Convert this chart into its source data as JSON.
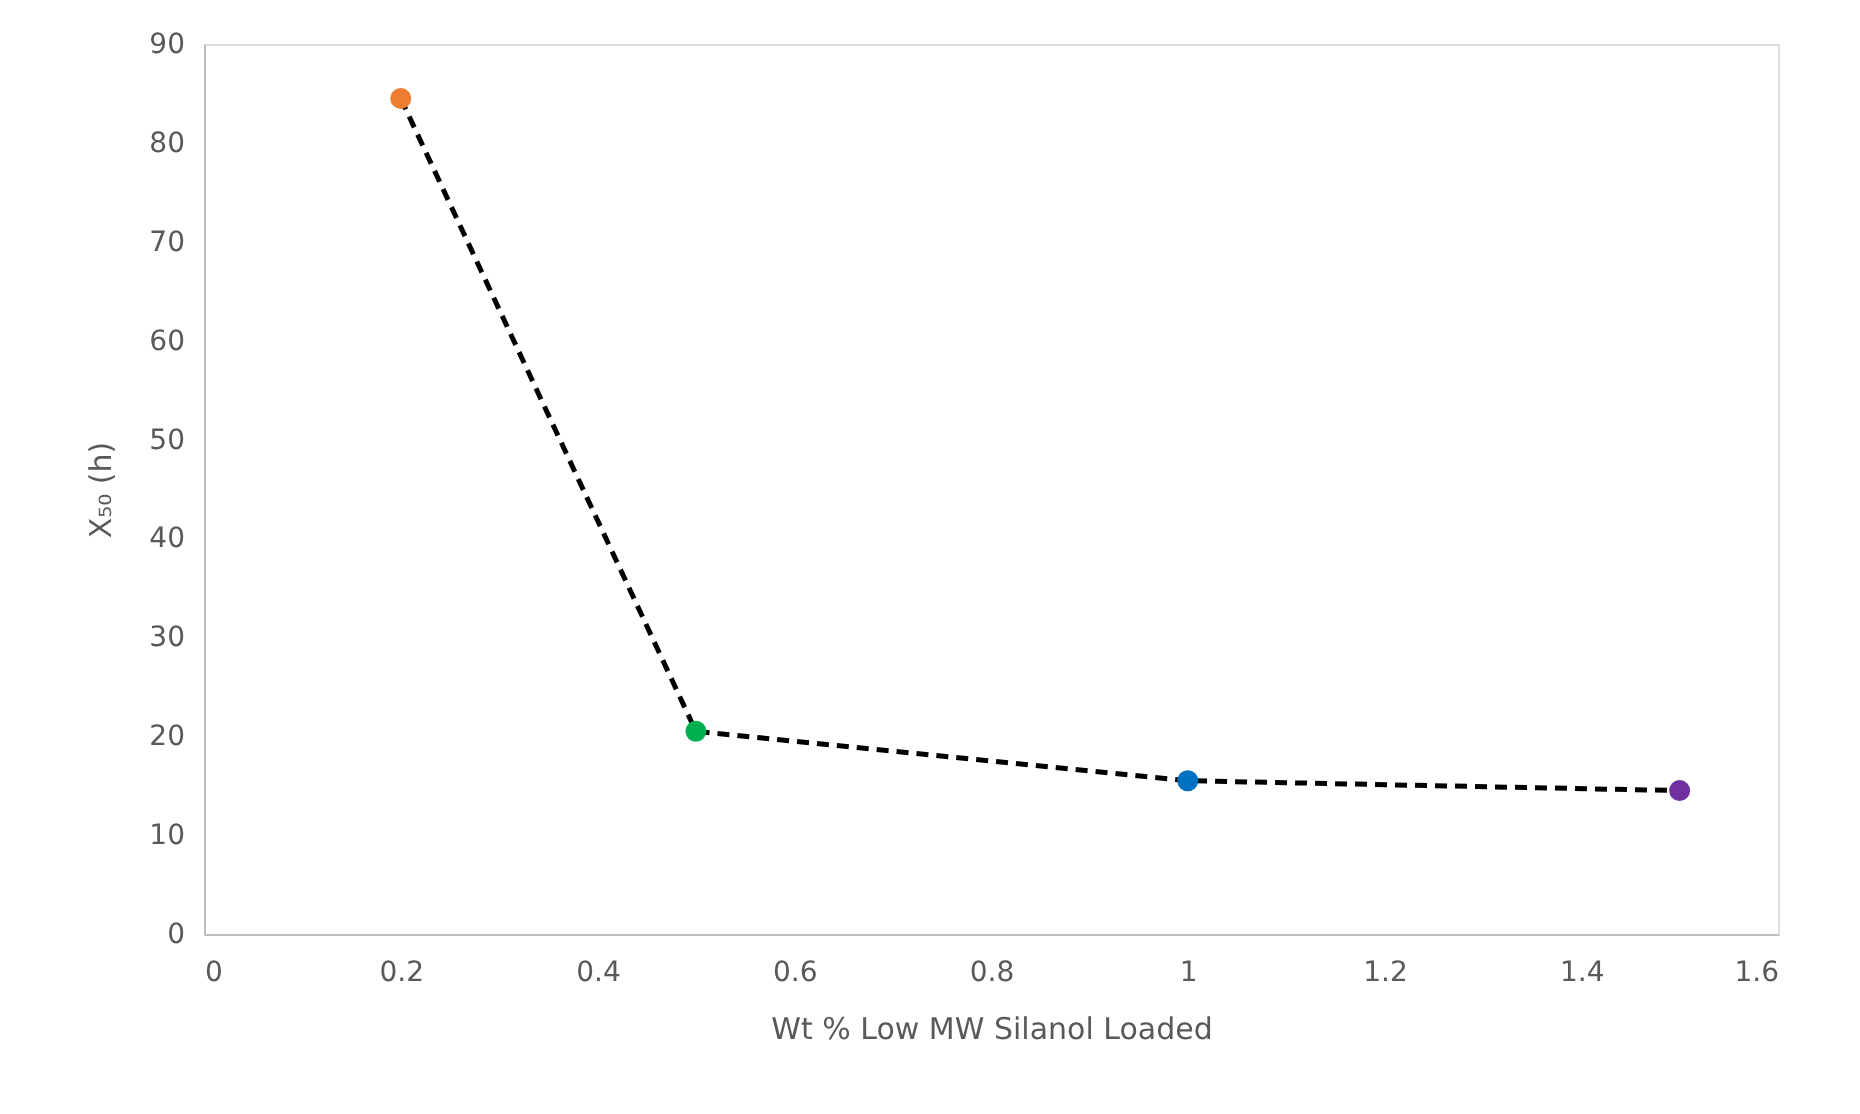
{
  "chart_data": {
    "type": "line",
    "xlabel": "Wt % Low MW Silanol Loaded",
    "ylabel": "X₅₀ (h)",
    "x": [
      0.2,
      0.5,
      1,
      1.5
    ],
    "series": [
      {
        "color": "#000000",
        "colors": [
          "#ed7d31",
          "#00b050",
          "#0070c0",
          "#7030a0"
        ],
        "values": [
          84.5,
          20.5,
          15.5,
          14.5
        ],
        "line_style": "dashed",
        "marker": "circle"
      }
    ],
    "xlim": [
      0,
      1.6
    ],
    "xticks": [
      0,
      0.2,
      0.4,
      0.6,
      0.8,
      1,
      1.2,
      1.4,
      1.6
    ],
    "ylim": [
      0,
      90
    ],
    "yticks": [
      0,
      10,
      20,
      30,
      40,
      50,
      60,
      70,
      80,
      90
    ],
    "grid": false
  }
}
